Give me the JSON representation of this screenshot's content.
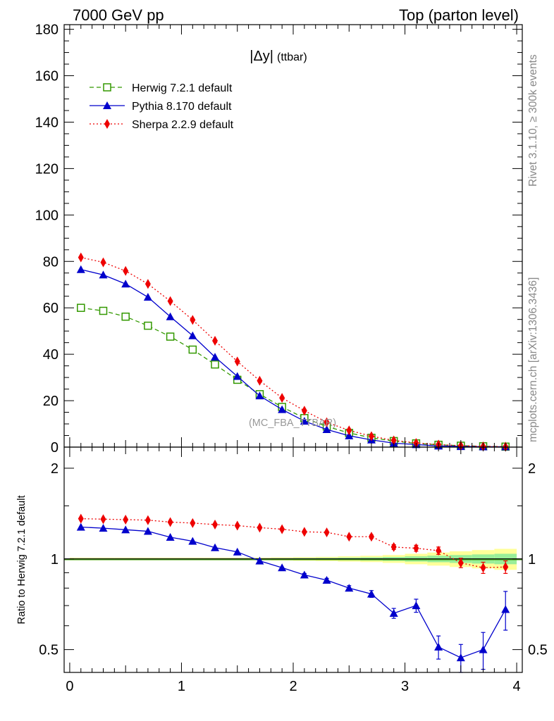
{
  "header": {
    "left": "7000 GeV pp",
    "right": "Top (parton level)"
  },
  "side_labels": {
    "rivet": "Rivet 3.1.10, ≥ 300k events",
    "mcplots": "mcplots.cern.ch [arXiv:1306.3436]"
  },
  "analysis_tag": "(MC_FBA_TTBAR)",
  "colors": {
    "herwig": "#339900",
    "pythia": "#0000cc",
    "sherpa": "#ee0000",
    "band_yellow": "#ffff99",
    "band_green": "#99ee99"
  },
  "chart_data": [
    {
      "type": "line",
      "panel": "main",
      "title_main": "|Δy|",
      "title_sub": "(ttbar)",
      "xlim": [
        -0.05,
        4.05
      ],
      "ylim": [
        0,
        182
      ],
      "y_ticks": [
        "0",
        "20",
        "40",
        "60",
        "80",
        "100",
        "120",
        "140",
        "160",
        "180"
      ],
      "x": [
        0.1,
        0.3,
        0.5,
        0.7,
        0.9,
        1.1,
        1.3,
        1.5,
        1.7,
        1.9,
        2.1,
        2.3,
        2.5,
        2.7,
        2.9,
        3.1,
        3.3,
        3.5,
        3.7,
        3.9
      ],
      "legend_position": "top-left",
      "series": [
        {
          "key": "herwig",
          "name": "Herwig 7.2.1 default",
          "marker": "open-square",
          "dash": "6,4",
          "values": [
            60.0,
            58.7,
            56.2,
            52.3,
            47.6,
            42.0,
            35.6,
            29.0,
            22.8,
            17.3,
            12.5,
            8.9,
            6.1,
            4.0,
            2.6,
            1.6,
            1.0,
            0.6,
            0.35,
            0.2
          ]
        },
        {
          "key": "pythia",
          "name": "Pythia 8.170 default",
          "marker": "filled-triangle",
          "dash": "",
          "values": [
            76.5,
            74.2,
            70.3,
            64.6,
            56.2,
            48.0,
            38.8,
            30.5,
            22.1,
            16.2,
            11.2,
            7.6,
            4.9,
            3.1,
            1.7,
            1.1,
            0.5,
            0.28,
            0.17,
            0.14
          ]
        },
        {
          "key": "sherpa",
          "name": "Sherpa 2.2.9 default",
          "marker": "filled-diamond",
          "dash": "2,3",
          "values": [
            81.7,
            79.6,
            75.9,
            70.3,
            62.9,
            54.8,
            45.8,
            36.9,
            28.6,
            21.2,
            15.7,
            10.7,
            7.2,
            4.7,
            2.9,
            1.8,
            1.1,
            0.6,
            0.32,
            0.19
          ]
        }
      ]
    },
    {
      "type": "line",
      "panel": "ratio",
      "ylabel": "Ratio to Herwig 7.2.1 default",
      "scale": "log",
      "ylim": [
        0.42,
        2.35
      ],
      "y_ticks": [
        {
          "value": 0.5,
          "label": "0.5"
        },
        {
          "value": 1,
          "label": "1"
        },
        {
          "value": 2,
          "label": "2"
        }
      ],
      "xlim": [
        -0.05,
        4.05
      ],
      "x_ticks": [
        "0",
        "1",
        "2",
        "3",
        "4"
      ],
      "x": [
        0.1,
        0.3,
        0.5,
        0.7,
        0.9,
        1.1,
        1.3,
        1.5,
        1.7,
        1.9,
        2.1,
        2.3,
        2.5,
        2.7,
        2.9,
        3.1,
        3.3,
        3.5,
        3.7,
        3.9
      ],
      "herwig_band": [
        0.005,
        0.005,
        0.005,
        0.005,
        0.005,
        0.005,
        0.005,
        0.005,
        0.005,
        0.006,
        0.007,
        0.008,
        0.01,
        0.012,
        0.015,
        0.02,
        0.025,
        0.03,
        0.035,
        0.04
      ],
      "series": [
        {
          "key": "pythia",
          "name": "Pythia 8.170 default",
          "values": [
            1.275,
            1.265,
            1.25,
            1.235,
            1.18,
            1.145,
            1.09,
            1.055,
            0.985,
            0.935,
            0.885,
            0.85,
            0.8,
            0.765,
            0.66,
            0.7,
            0.51,
            0.47,
            0.5,
            0.68
          ],
          "errors": [
            0.005,
            0.005,
            0.005,
            0.005,
            0.006,
            0.007,
            0.007,
            0.008,
            0.008,
            0.009,
            0.01,
            0.012,
            0.015,
            0.02,
            0.025,
            0.035,
            0.045,
            0.05,
            0.07,
            0.1
          ]
        },
        {
          "key": "sherpa",
          "name": "Sherpa 2.2.9 default",
          "values": [
            1.36,
            1.355,
            1.35,
            1.345,
            1.325,
            1.315,
            1.3,
            1.29,
            1.27,
            1.255,
            1.23,
            1.225,
            1.185,
            1.185,
            1.095,
            1.085,
            1.065,
            0.97,
            0.935,
            0.94
          ],
          "errors": [
            0.005,
            0.005,
            0.005,
            0.005,
            0.006,
            0.006,
            0.006,
            0.007,
            0.007,
            0.008,
            0.009,
            0.01,
            0.012,
            0.015,
            0.02,
            0.025,
            0.03,
            0.035,
            0.04,
            0.045
          ]
        }
      ]
    }
  ]
}
